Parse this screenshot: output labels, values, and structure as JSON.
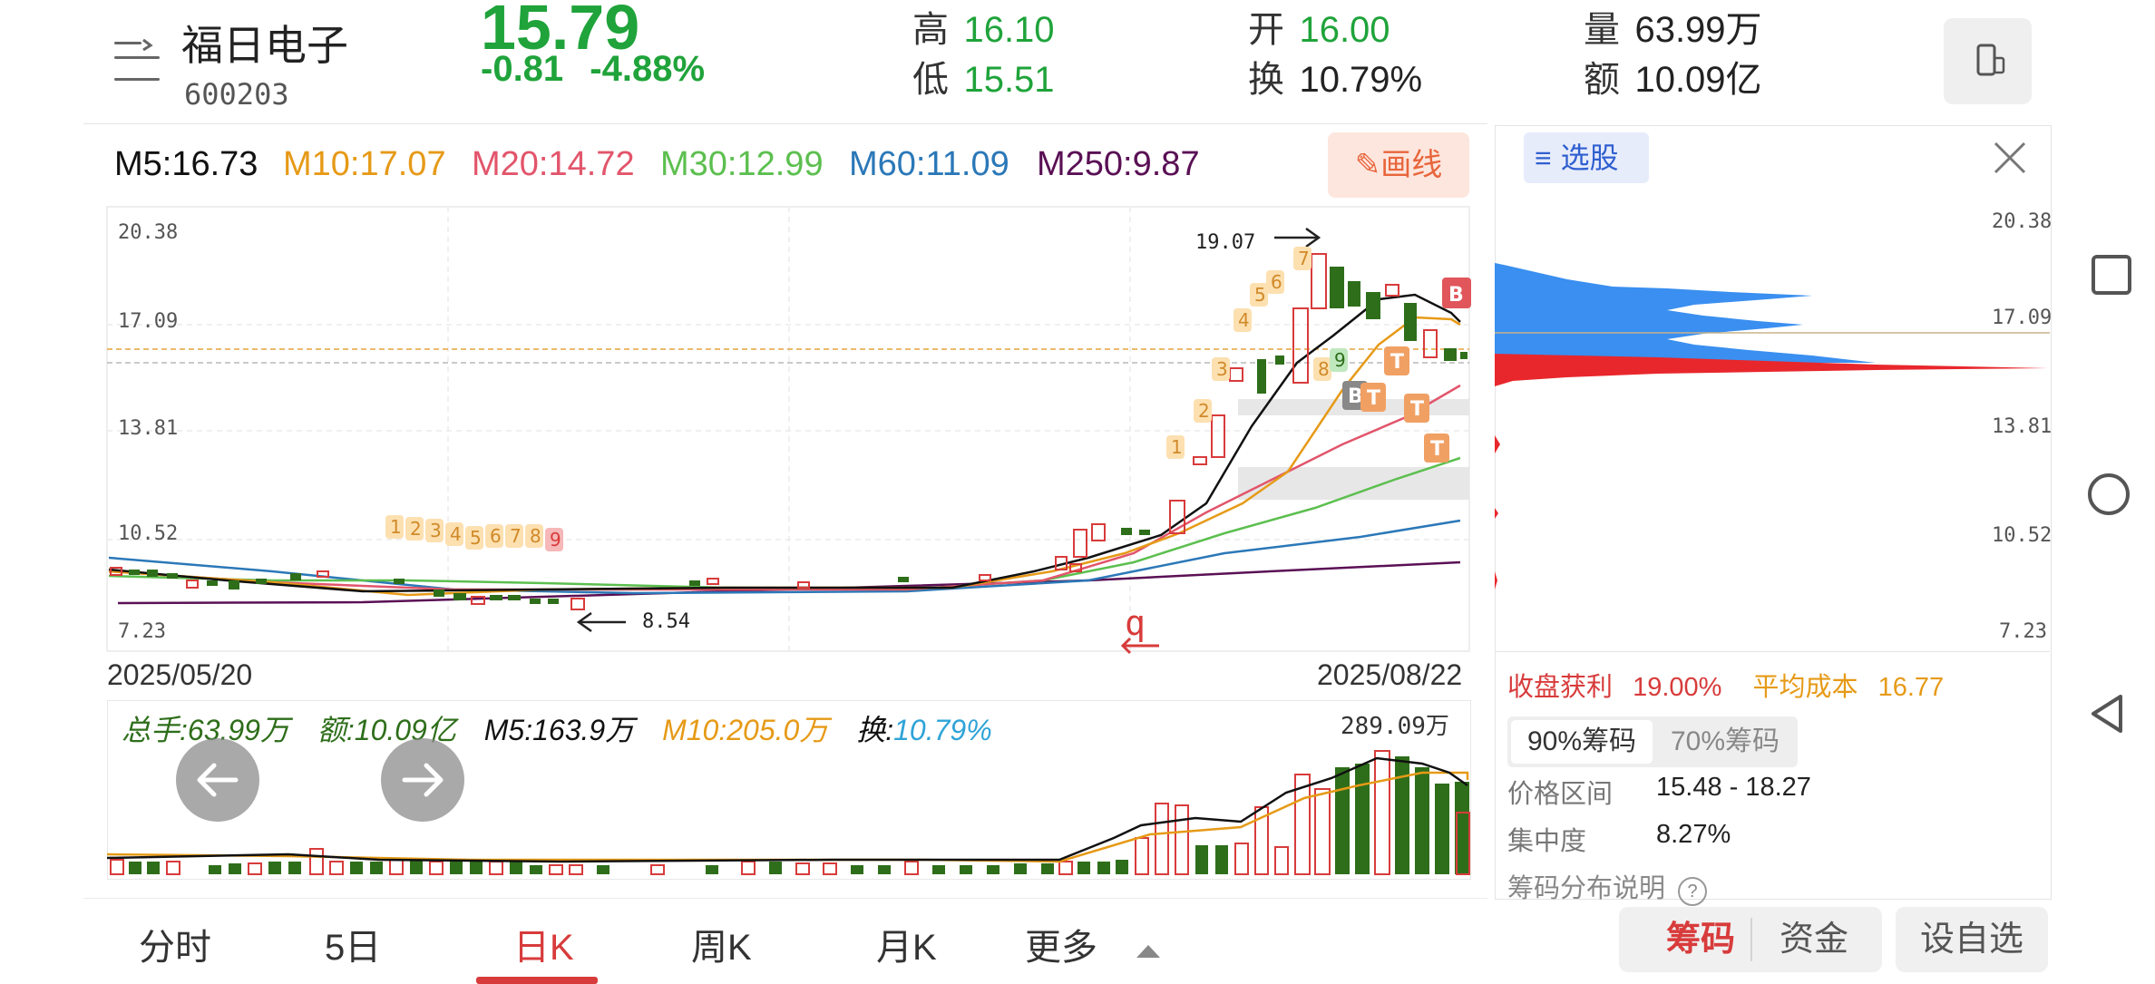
{
  "stock": {
    "name": "福日电子",
    "code": "600203",
    "price": "15.79",
    "change": "-0.81",
    "change_pct": "-4.88%",
    "high_label": "高",
    "high": "16.10",
    "low_label": "低",
    "low": "15.51",
    "open_label": "开",
    "open": "16.00",
    "turnover_label": "换",
    "turnover": "10.79%",
    "volume_label": "量",
    "volume": "63.99万",
    "amount_label": "额",
    "amount": "10.09亿"
  },
  "ma": {
    "m5": "M5:16.73",
    "m10": "M10:17.07",
    "m20": "M20:14.72",
    "m30": "M30:12.99",
    "m60": "M60:11.09",
    "m250": "M250:9.87",
    "colors": {
      "m5": "#111111",
      "m10": "#e69a17",
      "m20": "#e2556b",
      "m30": "#5cbf4f",
      "m60": "#2b78b8",
      "m250": "#5a1055"
    }
  },
  "toolbar": {
    "draw_label": "画线"
  },
  "kline": {
    "y_ticks": [
      "20.38",
      "17.09",
      "13.81",
      "10.52",
      "7.23"
    ],
    "start_date": "2025/05/20",
    "end_date": "2025/08/22",
    "high_annot": "19.07",
    "low_annot": "8.54",
    "marker_q": "q",
    "seq_left": [
      "1",
      "2",
      "3",
      "4",
      "5",
      "6",
      "7",
      "8",
      "9"
    ],
    "seq_right": [
      "1",
      "2",
      "3",
      "4",
      "5",
      "6",
      "7",
      "8",
      "9"
    ],
    "signal_b": "B",
    "signal_t": "T"
  },
  "volume": {
    "total": "总手:63.99万",
    "amount": "额:10.09亿",
    "m5": "M5:163.9万",
    "m10": "M10:205.0万",
    "turnover_label": "换:",
    "turnover": "10.79%",
    "max": "289.09万"
  },
  "chip": {
    "select_label": "选股",
    "y_ticks": [
      "20.38",
      "17.09",
      "13.81",
      "10.52",
      "7.23"
    ],
    "profit_label": "收盘获利",
    "profit": "19.00%",
    "avg_cost_label": "平均成本",
    "avg_cost": "16.77",
    "tab_90": "90%筹码",
    "tab_70": "70%筹码",
    "range_label": "价格区间",
    "range": "15.48 - 18.27",
    "conc_label": "集中度",
    "conc": "8.27%",
    "explain_label": "筹码分布说明",
    "explain_icon": "?"
  },
  "bottom_tabs": [
    "分时",
    "5日",
    "日K",
    "周K",
    "月K",
    "更多"
  ],
  "actions": {
    "chip": "筹码",
    "fund": "资金",
    "watch": "设自选"
  },
  "colors": {
    "up": "#d83b3b",
    "down": "#2e6e1a",
    "green_text": "#1fa33a",
    "accent_orange": "#e8653b",
    "chip_blue": "#3a8ff0",
    "chip_red": "#e8272c"
  }
}
